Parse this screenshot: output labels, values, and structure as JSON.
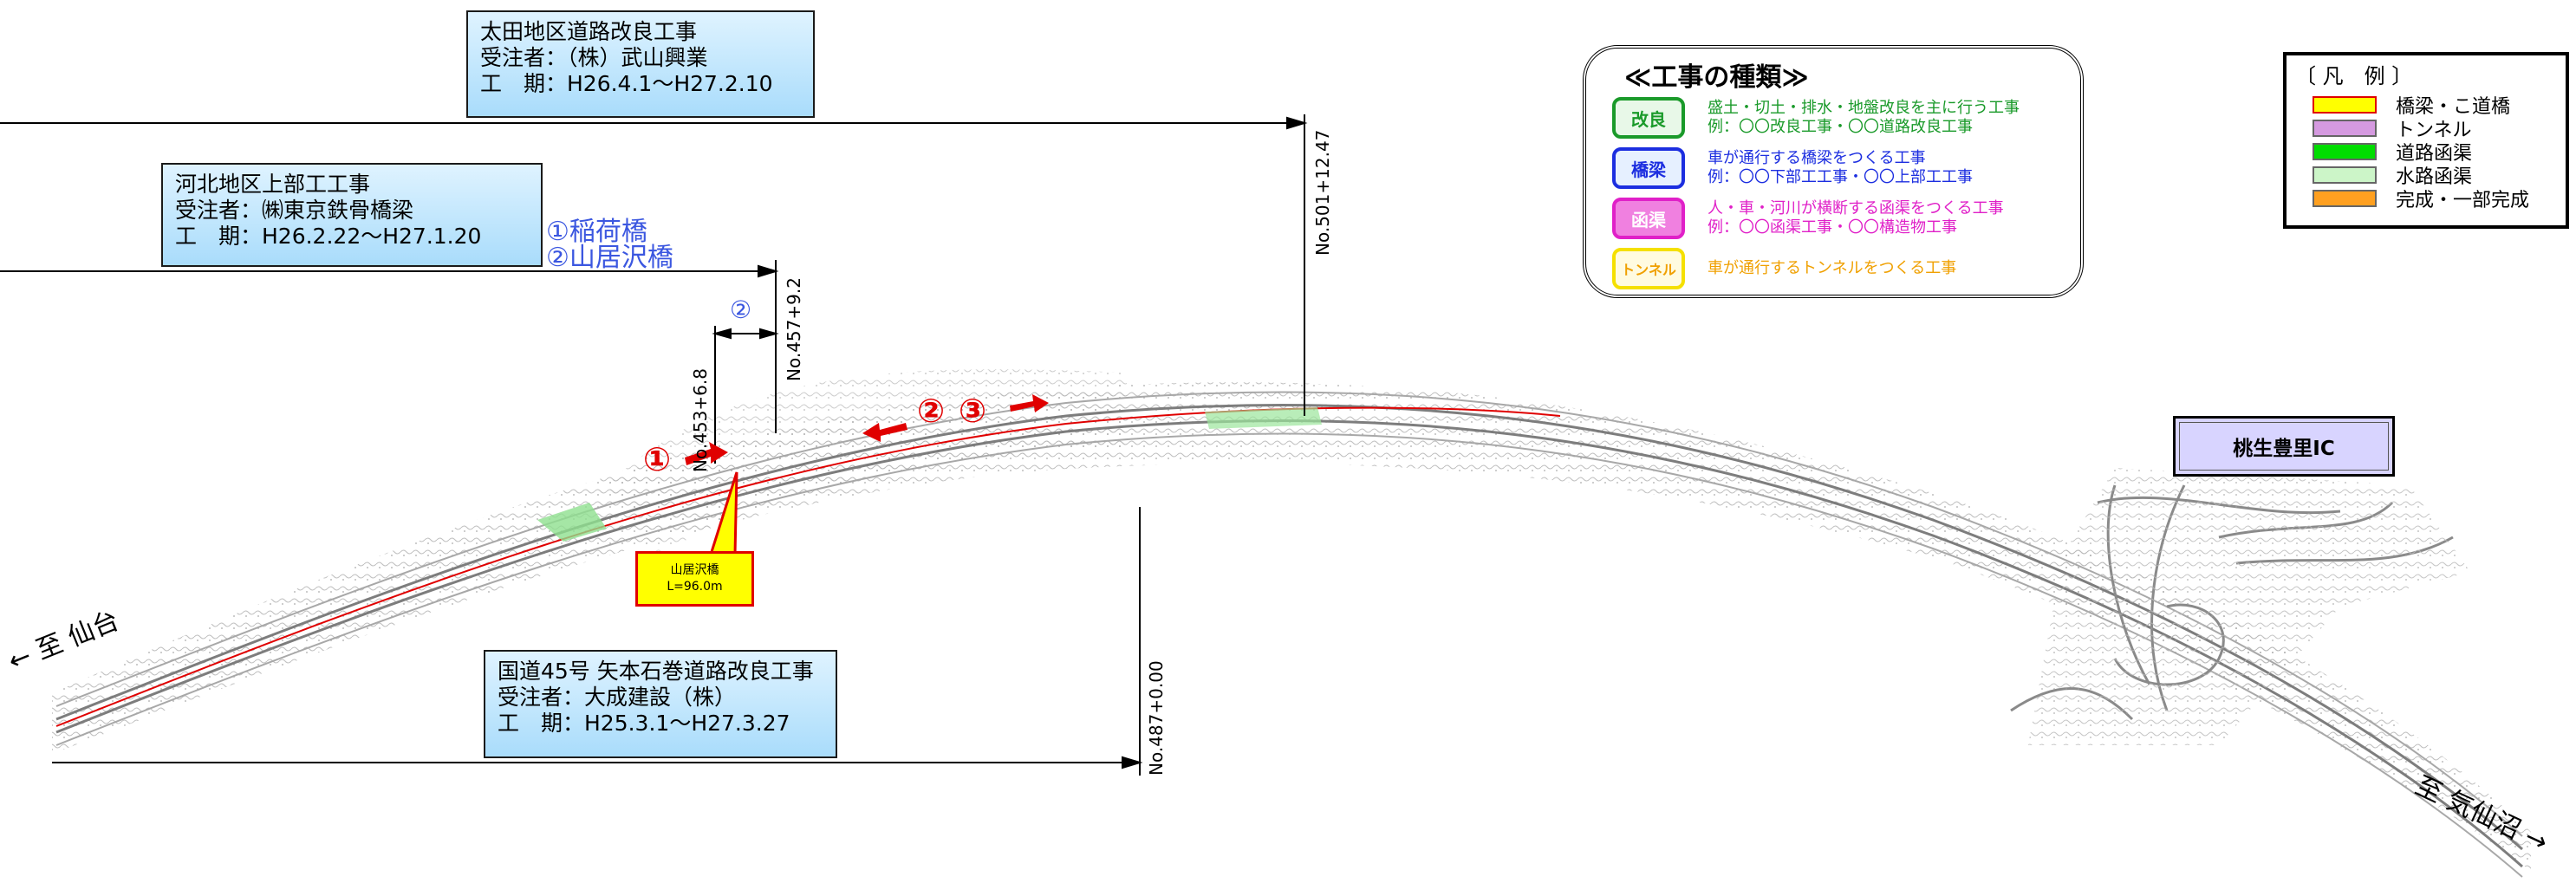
{
  "projects": {
    "ota": {
      "title": "太田地区道路改良工事",
      "contractor": "受注者：（株）武山興業",
      "period": "工　期：H26.4.1～H27.2.10"
    },
    "kawakita": {
      "title": "河北地区上部工工事",
      "contractor": "受注者：㈱東京鉄骨橋梁",
      "period": "工　期：H26.2.22～H27.1.20"
    },
    "route45": {
      "title": "国道45号 矢本石巻道路改良工事",
      "contractor": "受注者：大成建設（株）",
      "period": "工　期：H25.3.1～H27.3.27"
    }
  },
  "stations": {
    "s1": "No.501+12.47",
    "s2": "No.457+9.2",
    "s3": "No.453+6.8",
    "s4": "No.487+0.00"
  },
  "bridges": {
    "b1": "①稲荷橋",
    "b2": "②山居沢橋",
    "mark2": "②"
  },
  "callout": {
    "name": "山居沢橋",
    "length": "L=96.0m"
  },
  "markers": {
    "m1": "①",
    "m2": "②",
    "m3": "③"
  },
  "destinations": {
    "west": "← 至 仙台",
    "east": "至 気仙沼 →"
  },
  "interchange": "桃生豊里IC",
  "kinds": {
    "title": "≪工事の種類≫",
    "items": [
      {
        "badge": "改良",
        "line1": "盛土・切土・排水・地盤改良を主に行う工事",
        "line2": "例：〇〇改良工事・〇〇道路改良工事",
        "color": "#1a9a2a"
      },
      {
        "badge": "橋梁",
        "line1": "車が通行する橋梁をつくる工事",
        "line2": "例：〇〇下部工工事・〇〇上部工工事",
        "color": "#1c2ee0"
      },
      {
        "badge": "函渠",
        "line1": "人・車・河川が横断する函渠をつくる工事",
        "line2": "例：〇〇函渠工事・〇〇構造物工事",
        "color": "#e020c8"
      },
      {
        "badge": "トンネル",
        "line1": "車が通行するトンネルをつくる工事",
        "line2": "",
        "color": "#f0a000"
      }
    ]
  },
  "legend": {
    "title": "〔 凡　例 〕",
    "items": [
      {
        "label": "橋梁・こ道橋",
        "color": "#ffff00"
      },
      {
        "label": "トンネル",
        "color": "#d59ae0"
      },
      {
        "label": "道路函渠",
        "color": "#00dd00"
      },
      {
        "label": "水路函渠",
        "color": "#ccf5c8"
      },
      {
        "label": "完成・一部完成",
        "color": "#ffa020"
      }
    ]
  }
}
